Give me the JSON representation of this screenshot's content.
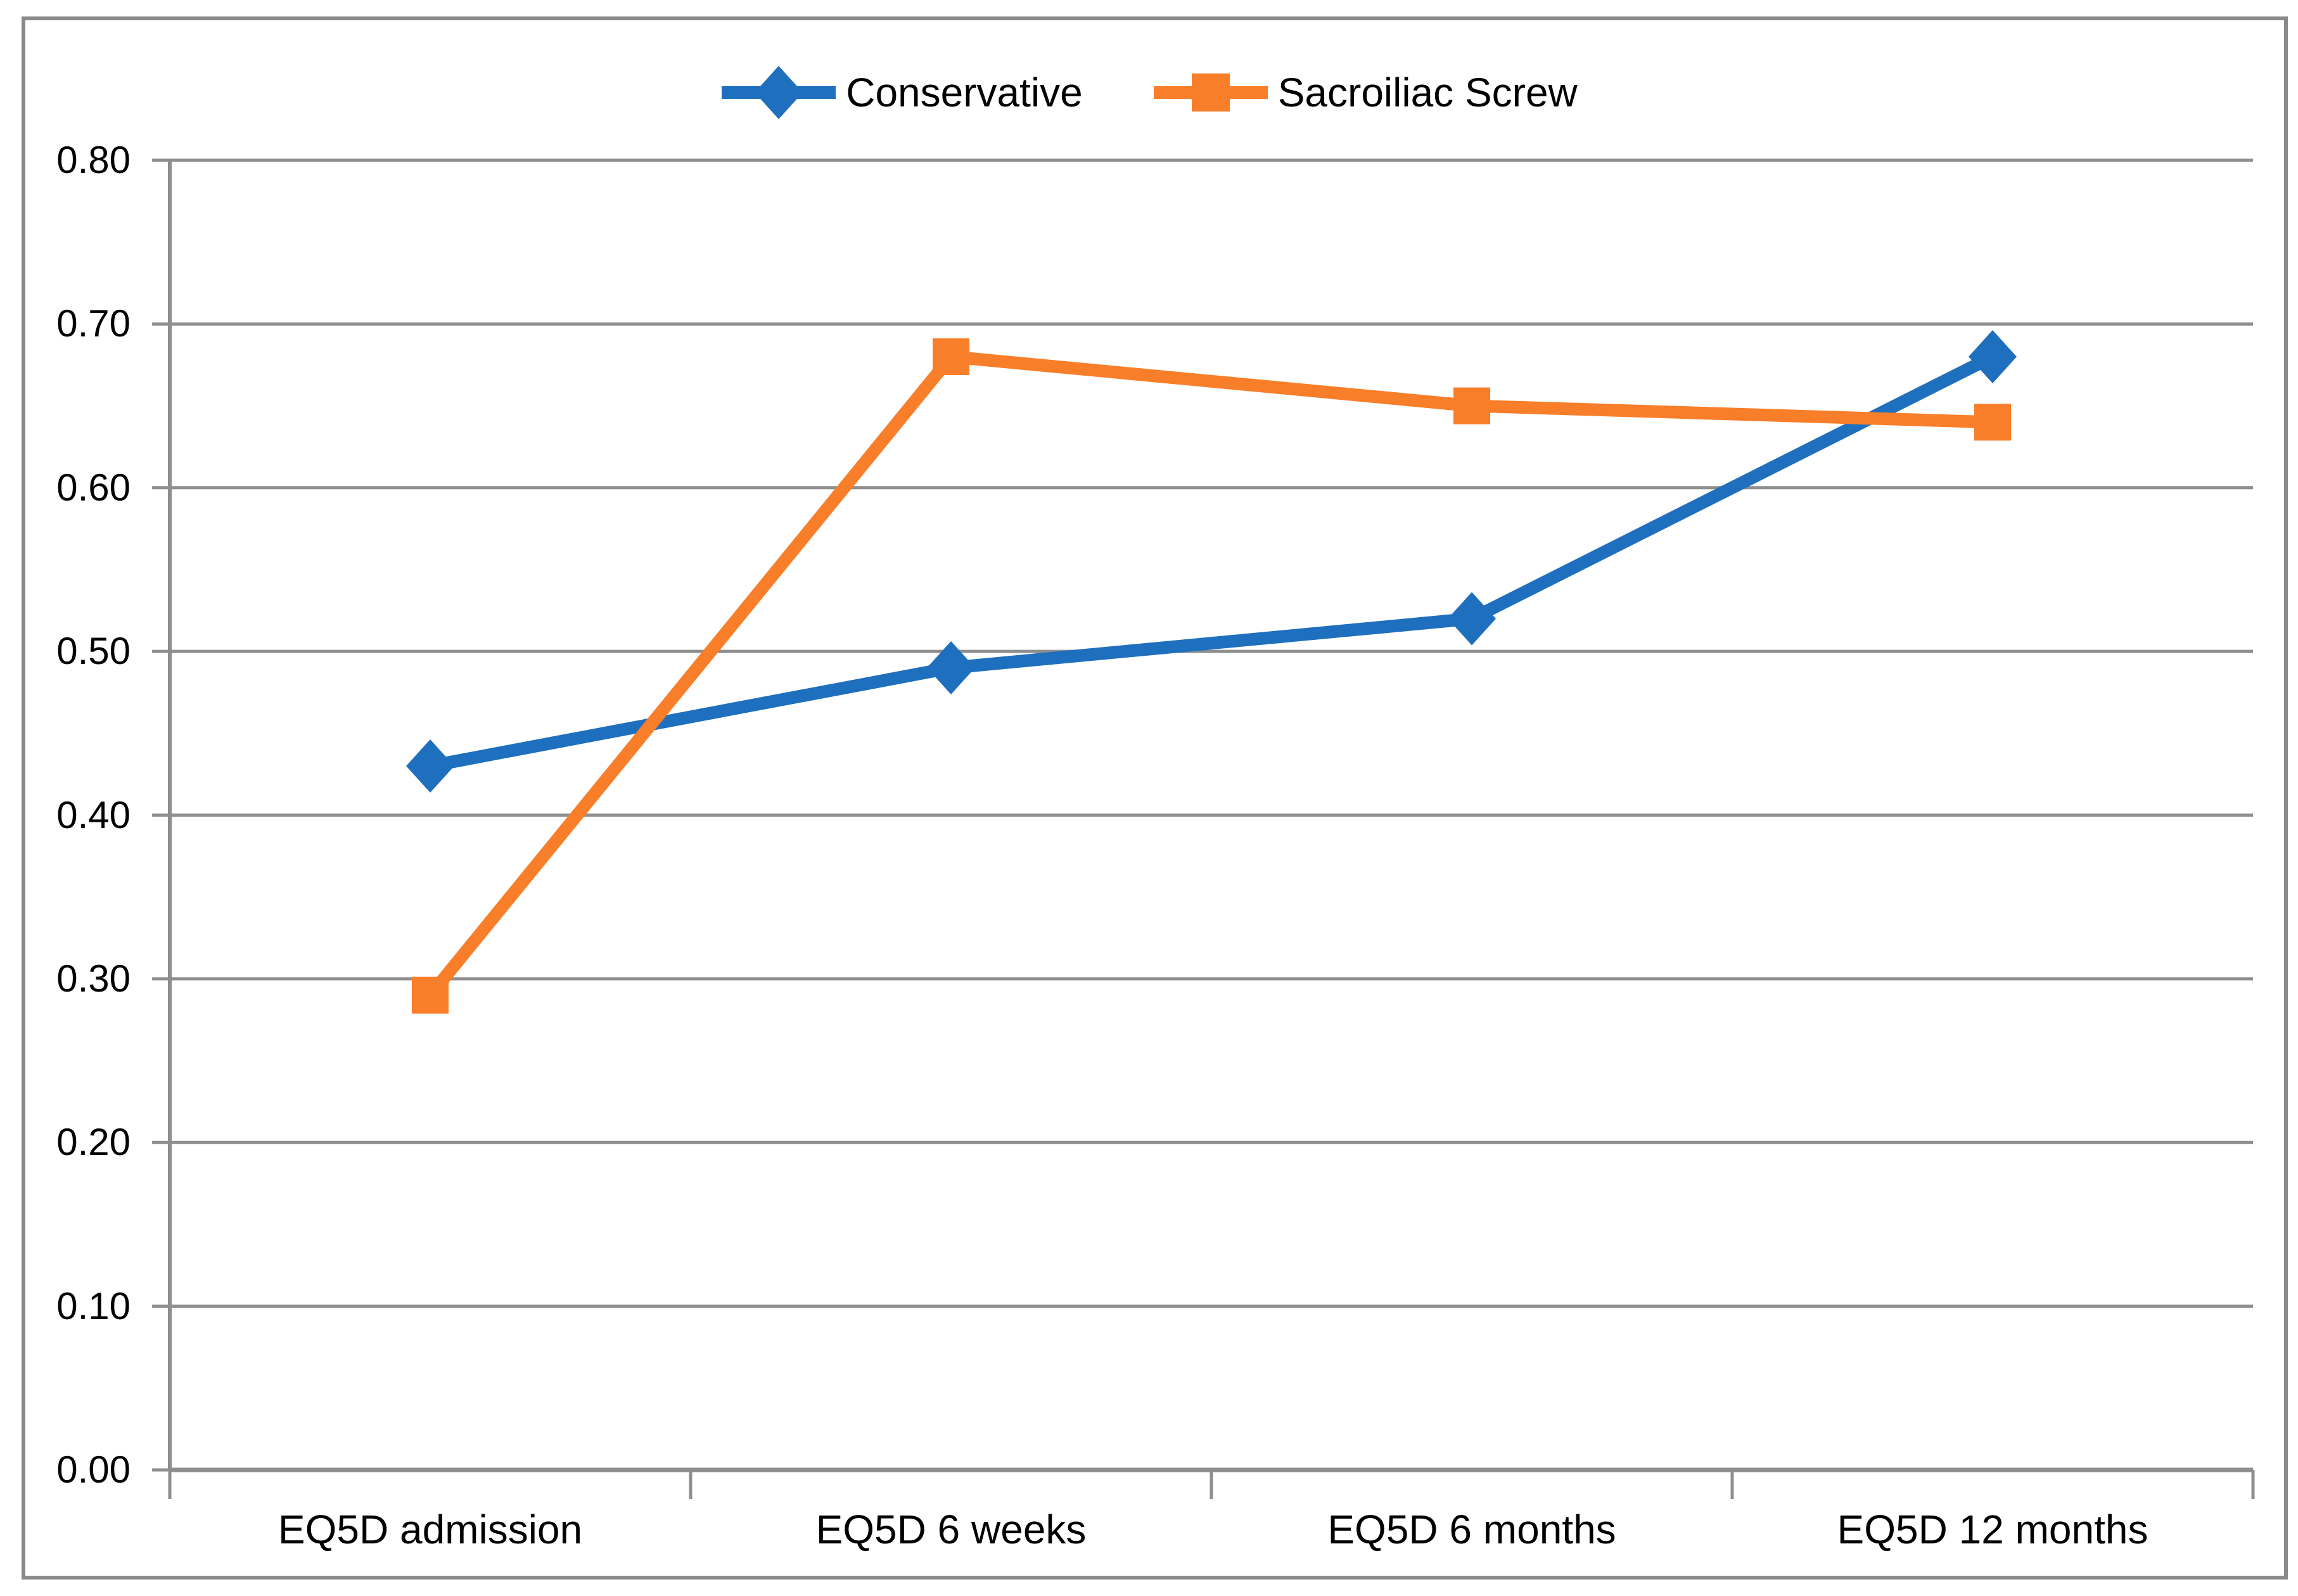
{
  "chart_data": {
    "type": "line",
    "categories": [
      "EQ5D admission",
      "EQ5D 6 weeks",
      "EQ5D 6 months",
      "EQ5D 12 months"
    ],
    "series": [
      {
        "name": "Conservative",
        "marker": "diamond",
        "color": "#1e6fbe",
        "values": [
          0.43,
          0.49,
          0.52,
          0.68
        ]
      },
      {
        "name": "Sacroiliac Screw",
        "marker": "square",
        "color": "#f97e29",
        "values": [
          0.29,
          0.68,
          0.65,
          0.64
        ]
      }
    ],
    "title": "",
    "xlabel": "",
    "ylabel": "",
    "ylim": [
      0.0,
      0.8
    ],
    "ytick_step": 0.1,
    "ytick_labels": [
      "0.00",
      "0.10",
      "0.20",
      "0.30",
      "0.40",
      "0.50",
      "0.60",
      "0.70",
      "0.80"
    ],
    "grid": true,
    "legend_position": "top-center",
    "colors": {
      "gridline": "#8e8e8e",
      "axis": "#8e8e8e",
      "border": "#8a8a8a",
      "text": "#000000",
      "background": "#ffffff"
    }
  }
}
